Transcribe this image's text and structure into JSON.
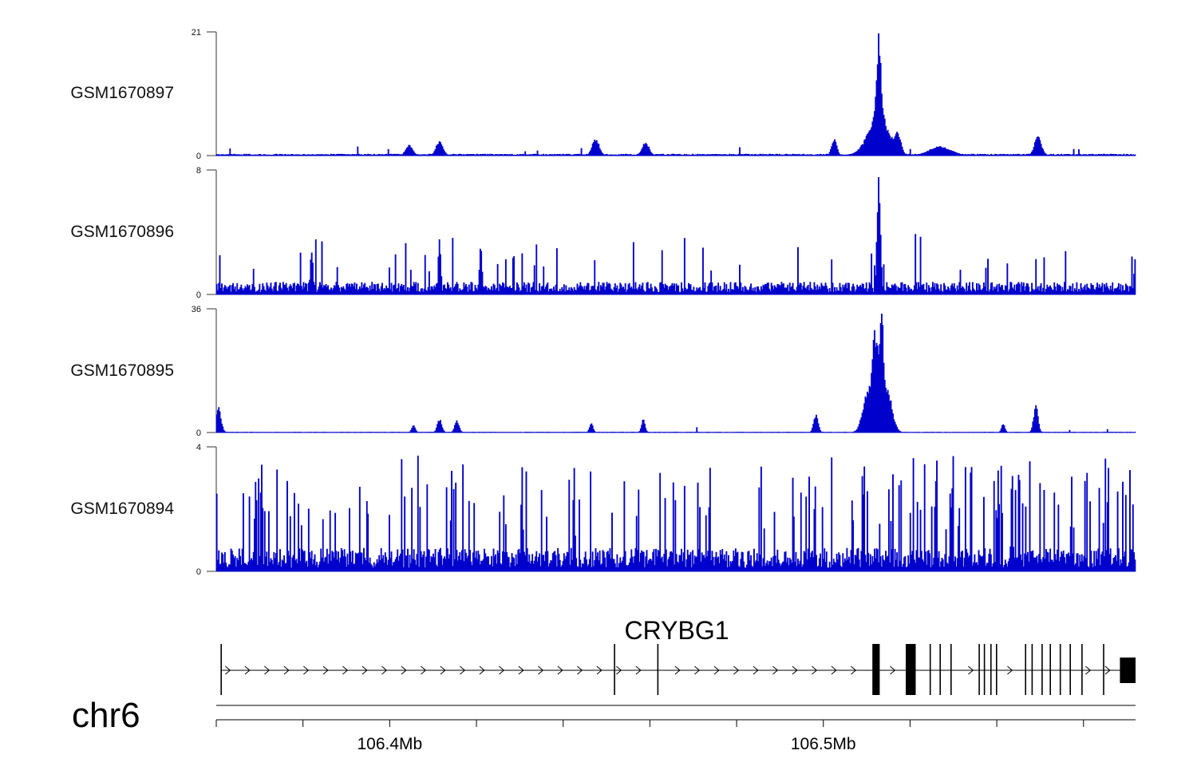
{
  "chart_data": {
    "type": "area",
    "chromosome": "chr6",
    "x_range_mb": [
      106.36,
      106.572
    ],
    "x_ticks_mb": [
      106.36,
      106.38,
      106.4,
      106.42,
      106.44,
      106.46,
      106.48,
      106.5,
      106.52,
      106.54,
      106.56
    ],
    "x_tick_labels": [
      {
        "pos_mb": 106.4,
        "label": "106.4Mb"
      },
      {
        "pos_mb": 106.5,
        "label": "106.5Mb"
      }
    ],
    "series": [
      {
        "name": "GSM1670897",
        "ylim": [
          0,
          21
        ],
        "ymin_label": "0",
        "ymax_label": "21",
        "color": "#0000cc",
        "baseline": 0.35,
        "noise": 0.5,
        "spike_rate": 0.015,
        "spike_height": 1.2,
        "peaks": [
          {
            "pos_mb": 106.5128,
            "height": 20.8,
            "width_mb": 0.0006
          },
          {
            "pos_mb": 106.5128,
            "height": 12.5,
            "width_mb": 0.0012
          },
          {
            "pos_mb": 106.5128,
            "height": 6.5,
            "width_mb": 0.0025
          },
          {
            "pos_mb": 106.517,
            "height": 4.5,
            "width_mb": 0.0008
          },
          {
            "pos_mb": 106.4045,
            "height": 1.8,
            "width_mb": 0.0008
          },
          {
            "pos_mb": 106.4115,
            "height": 2.5,
            "width_mb": 0.0008
          },
          {
            "pos_mb": 106.4475,
            "height": 3.0,
            "width_mb": 0.0008
          },
          {
            "pos_mb": 106.459,
            "height": 2.3,
            "width_mb": 0.0008
          },
          {
            "pos_mb": 106.5025,
            "height": 2.8,
            "width_mb": 0.0006
          },
          {
            "pos_mb": 106.5495,
            "height": 3.3,
            "width_mb": 0.0008
          },
          {
            "pos_mb": 106.527,
            "height": 1.6,
            "width_mb": 0.0025
          }
        ]
      },
      {
        "name": "GSM1670896",
        "ylim": [
          0,
          8
        ],
        "ymin_label": "0",
        "ymax_label": "8",
        "color": "#0000cc",
        "baseline": 0.55,
        "noise": 1.2,
        "spike_rate": 0.05,
        "spike_height": 2.6,
        "peaks": [
          {
            "pos_mb": 106.5128,
            "height": 7.8,
            "width_mb": 0.0004
          },
          {
            "pos_mb": 106.4115,
            "height": 3.6,
            "width_mb": 0.0003
          },
          {
            "pos_mb": 106.421,
            "height": 3.6,
            "width_mb": 0.0003
          },
          {
            "pos_mb": 106.382,
            "height": 3.3,
            "width_mb": 0.0003
          },
          {
            "pos_mb": 106.572,
            "height": 2.9,
            "width_mb": 0.0003
          }
        ]
      },
      {
        "name": "GSM1670895",
        "ylim": [
          0,
          36
        ],
        "ymin_label": "0",
        "ymax_label": "36",
        "color": "#0000cc",
        "baseline": 0.25,
        "noise": 0.35,
        "spike_rate": 0.01,
        "spike_height": 1.2,
        "peaks": [
          {
            "pos_mb": 106.5125,
            "height": 27.0,
            "width_mb": 0.0016
          },
          {
            "pos_mb": 106.5134,
            "height": 35.5,
            "width_mb": 0.0006
          },
          {
            "pos_mb": 106.5118,
            "height": 30.0,
            "width_mb": 0.0006
          },
          {
            "pos_mb": 106.5145,
            "height": 14.0,
            "width_mb": 0.0012
          },
          {
            "pos_mb": 106.5105,
            "height": 14.0,
            "width_mb": 0.0012
          },
          {
            "pos_mb": 106.3605,
            "height": 7.5,
            "width_mb": 0.0006
          },
          {
            "pos_mb": 106.4983,
            "height": 5.5,
            "width_mb": 0.0005
          },
          {
            "pos_mb": 106.549,
            "height": 8.0,
            "width_mb": 0.0005
          },
          {
            "pos_mb": 106.4055,
            "height": 2.2,
            "width_mb": 0.0004
          },
          {
            "pos_mb": 106.4115,
            "height": 4.0,
            "width_mb": 0.0005
          },
          {
            "pos_mb": 106.4155,
            "height": 3.5,
            "width_mb": 0.0005
          },
          {
            "pos_mb": 106.4465,
            "height": 2.7,
            "width_mb": 0.0004
          },
          {
            "pos_mb": 106.4585,
            "height": 4.0,
            "width_mb": 0.0004
          },
          {
            "pos_mb": 106.5415,
            "height": 2.5,
            "width_mb": 0.0004
          }
        ]
      },
      {
        "name": "GSM1670894",
        "ylim": [
          0,
          4
        ],
        "ymin_label": "0",
        "ymax_label": "4",
        "color": "#0000cc",
        "baseline": 0.45,
        "noise": 1.4,
        "spike_rate": 0.16,
        "spike_height": 2.6,
        "peaks": [
          {
            "pos_mb": 106.5435,
            "height": 3.95,
            "width_mb": 0.0002
          },
          {
            "pos_mb": 106.4305,
            "height": 3.5,
            "width_mb": 0.0002
          },
          {
            "pos_mb": 106.4425,
            "height": 3.6,
            "width_mb": 0.0002
          }
        ]
      }
    ],
    "gene": {
      "name": "CRYBG1",
      "strand": "+",
      "start_mb": 106.361,
      "end_mb": 106.572,
      "exons": [
        {
          "start_mb": 106.361,
          "end_mb": 106.3613,
          "thick": true
        },
        {
          "start_mb": 106.4517,
          "end_mb": 106.4519,
          "thick": false
        },
        {
          "start_mb": 106.4617,
          "end_mb": 106.462,
          "thick": true
        },
        {
          "start_mb": 106.5113,
          "end_mb": 106.513,
          "thick": true
        },
        {
          "start_mb": 106.519,
          "end_mb": 106.5213,
          "thick": true
        },
        {
          "start_mb": 106.5245,
          "end_mb": 106.5247,
          "thick": true
        },
        {
          "start_mb": 106.5268,
          "end_mb": 106.527,
          "thick": true
        },
        {
          "start_mb": 106.5293,
          "end_mb": 106.5295,
          "thick": true
        },
        {
          "start_mb": 106.5358,
          "end_mb": 106.536,
          "thick": true
        },
        {
          "start_mb": 106.537,
          "end_mb": 106.5372,
          "thick": true
        },
        {
          "start_mb": 106.5385,
          "end_mb": 106.5387,
          "thick": true
        },
        {
          "start_mb": 106.5398,
          "end_mb": 106.54,
          "thick": true
        },
        {
          "start_mb": 106.5465,
          "end_mb": 106.5467,
          "thick": true
        },
        {
          "start_mb": 106.548,
          "end_mb": 106.5482,
          "thick": true
        },
        {
          "start_mb": 106.5503,
          "end_mb": 106.5505,
          "thick": true
        },
        {
          "start_mb": 106.5522,
          "end_mb": 106.5524,
          "thick": true
        },
        {
          "start_mb": 106.5545,
          "end_mb": 106.5547,
          "thick": true
        },
        {
          "start_mb": 106.5568,
          "end_mb": 106.557,
          "thick": true
        },
        {
          "start_mb": 106.5595,
          "end_mb": 106.5597,
          "thick": true
        },
        {
          "start_mb": 106.5645,
          "end_mb": 106.5647,
          "thick": true
        },
        {
          "start_mb": 106.5684,
          "end_mb": 106.572,
          "thick": true
        }
      ]
    }
  }
}
